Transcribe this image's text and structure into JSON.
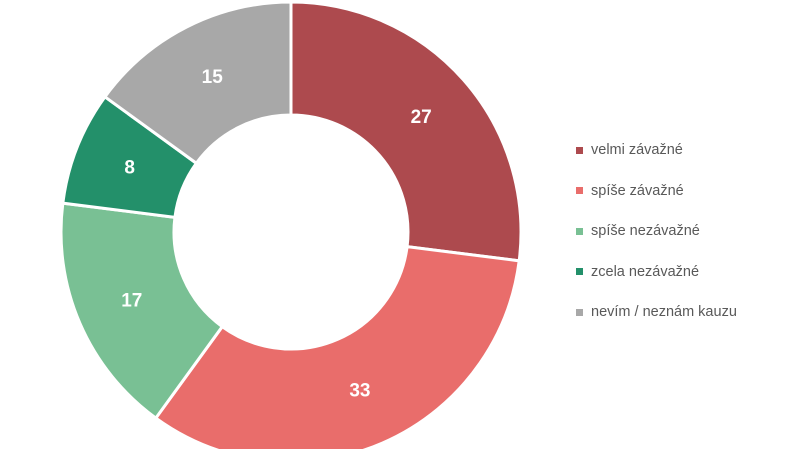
{
  "chart_data": {
    "type": "pie",
    "title": "",
    "donut": true,
    "legend_position": "right",
    "categories": [
      "velmi závažné",
      "spíše závažné",
      "spíše nezávažné",
      "zcela nezávažné",
      "nevím / neznám kauzu"
    ],
    "values": [
      27,
      33,
      17,
      8,
      15
    ],
    "colors": [
      "#ad4a4e",
      "#e96d6b",
      "#79c094",
      "#23906a",
      "#a8a8a8"
    ]
  }
}
